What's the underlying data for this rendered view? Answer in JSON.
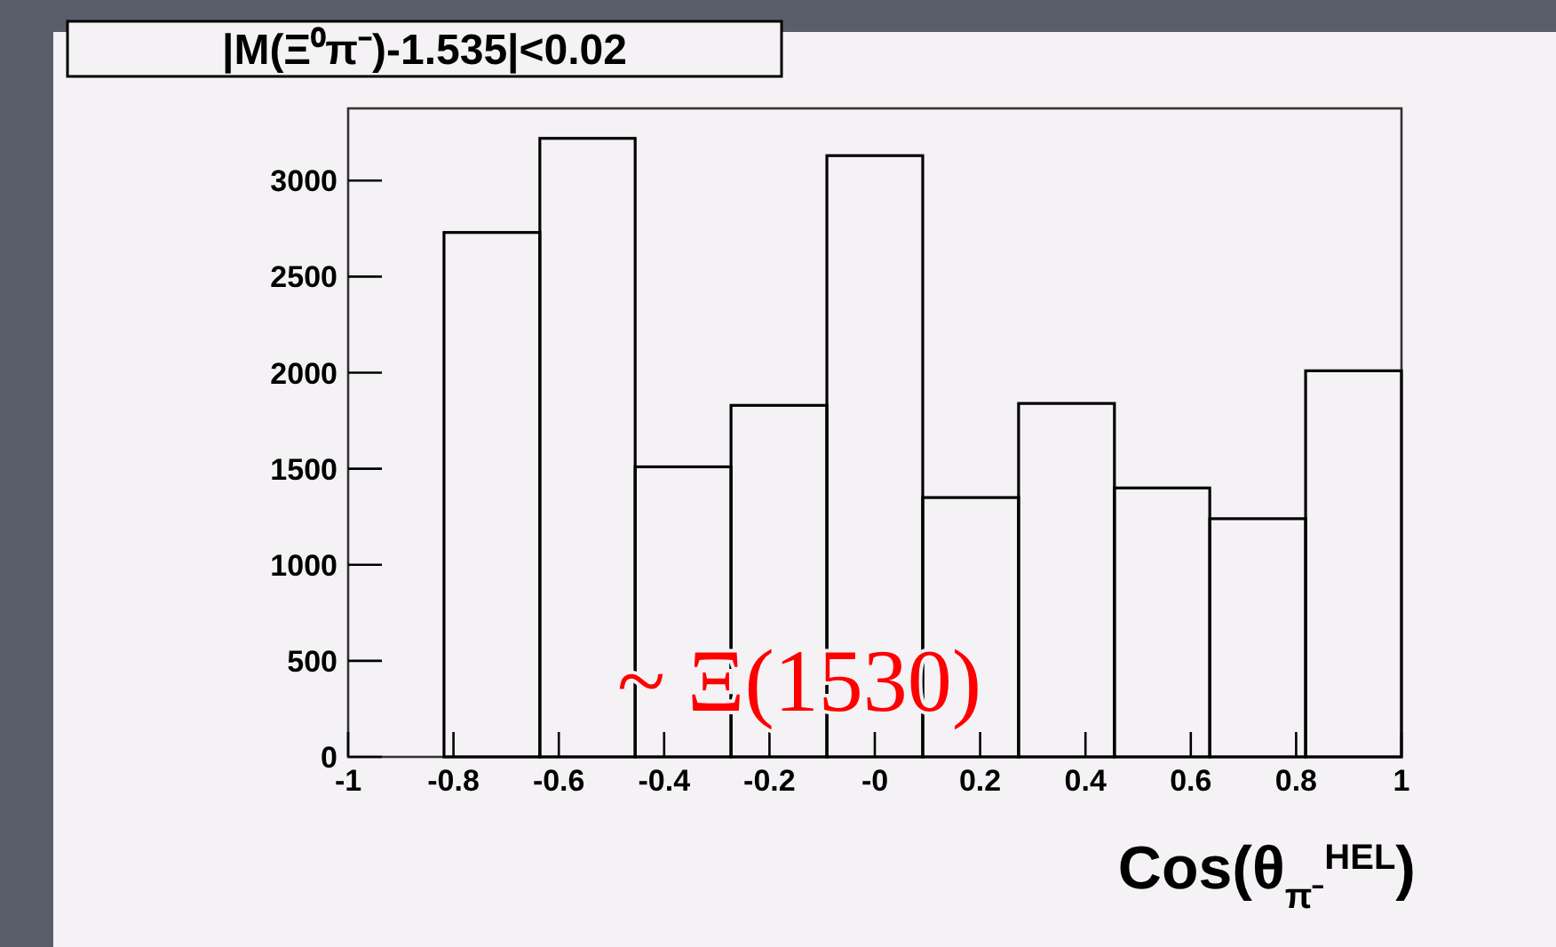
{
  "chart_data": {
    "type": "histogram",
    "title": "|M(Ξ⁰π⁻)-1.535|<0.02",
    "xlabel": "Cos(θ$_{π⁻}$$^{HEL}$)",
    "bins": [
      -0.818,
      -0.636,
      -0.455,
      -0.273,
      -0.091,
      0.091,
      0.273,
      0.455,
      0.636,
      0.818,
      1
    ],
    "values": [
      2730,
      3220,
      1510,
      1830,
      3130,
      1350,
      1840,
      1400,
      1240,
      2010
    ],
    "color": "#000000",
    "xlim": [
      -1,
      1
    ],
    "xticks": [
      -1,
      -0.8,
      -0.6,
      -0.4,
      -0.2,
      {
        "value": 0,
        "label": "-0"
      },
      0.2,
      0.4,
      0.6,
      0.8,
      1
    ],
    "ylim": [
      0,
      3376
    ],
    "yticks": [
      0,
      500,
      1000,
      1500,
      2000,
      2500,
      3000
    ],
    "grid": false,
    "annotations": [
      "~ Ξ(1530)"
    ]
  }
}
